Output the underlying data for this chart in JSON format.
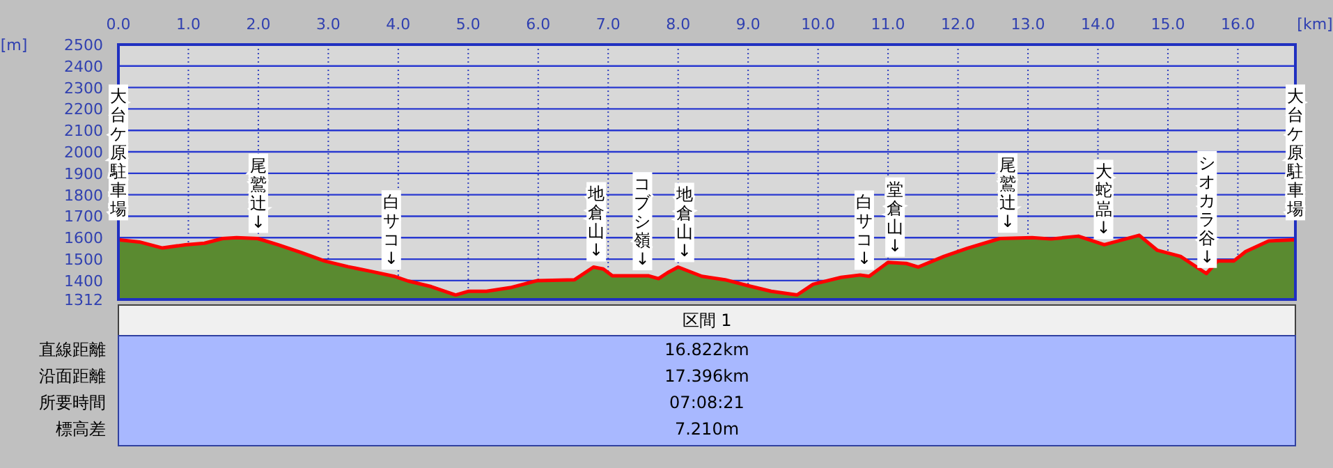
{
  "chart_data": {
    "type": "area",
    "xlabel": "[km]",
    "ylabel": "[m]",
    "x": [
      0,
      0.3,
      0.63,
      0.96,
      1.23,
      1.49,
      1.69,
      1.99,
      2.28,
      2.62,
      2.95,
      3.28,
      3.61,
      3.94,
      4.14,
      4.47,
      4.82,
      5.0,
      5.26,
      5.6,
      5.99,
      6.52,
      6.79,
      6.93,
      7.06,
      7.32,
      7.58,
      7.72,
      7.85,
      8.0,
      8.34,
      8.67,
      9.0,
      9.33,
      9.7,
      9.93,
      10.33,
      10.6,
      10.73,
      11.0,
      11.26,
      11.43,
      11.8,
      12.13,
      12.6,
      13.06,
      13.33,
      13.72,
      14.09,
      14.59,
      14.85,
      15.18,
      15.55,
      15.71,
      15.94,
      16.11,
      16.44,
      16.822
    ],
    "series": [
      {
        "color": "#5a8a30",
        "values": [
          1590,
          1580,
          1552,
          1567,
          1574,
          1596,
          1600,
          1596,
          1567,
          1530,
          1491,
          1465,
          1443,
          1420,
          1398,
          1372,
          1333,
          1350,
          1350,
          1367,
          1400,
          1404,
          1463,
          1454,
          1422,
          1422,
          1422,
          1409,
          1437,
          1463,
          1420,
          1404,
          1376,
          1350,
          1333,
          1383,
          1415,
          1426,
          1420,
          1485,
          1480,
          1463,
          1513,
          1550,
          1596,
          1600,
          1594,
          1607,
          1567,
          1611,
          1541,
          1513,
          1433,
          1491,
          1491,
          1535,
          1585,
          1590
        ]
      },
      {
        "type": "line",
        "color": "#ff0000",
        "values": [
          1590,
          1580,
          1552,
          1567,
          1574,
          1596,
          1600,
          1596,
          1567,
          1530,
          1491,
          1465,
          1443,
          1420,
          1398,
          1372,
          1333,
          1350,
          1350,
          1367,
          1400,
          1404,
          1463,
          1454,
          1422,
          1422,
          1422,
          1409,
          1437,
          1463,
          1420,
          1404,
          1376,
          1350,
          1333,
          1383,
          1415,
          1426,
          1420,
          1485,
          1480,
          1463,
          1513,
          1550,
          1596,
          1600,
          1594,
          1607,
          1567,
          1611,
          1541,
          1513,
          1433,
          1491,
          1491,
          1535,
          1585,
          1590
        ]
      }
    ],
    "xlim": [
      0,
      16.822
    ],
    "ylim": [
      1312,
      2500
    ],
    "xticks": [
      {
        "value": 0,
        "label": "0.0"
      },
      {
        "value": 1,
        "label": "1.0"
      },
      {
        "value": 2,
        "label": "2.0"
      },
      {
        "value": 3,
        "label": "3.0"
      },
      {
        "value": 4,
        "label": "4.0"
      },
      {
        "value": 5,
        "label": "5.0"
      },
      {
        "value": 6,
        "label": "6.0"
      },
      {
        "value": 7,
        "label": "7.0"
      },
      {
        "value": 8,
        "label": "8.0"
      },
      {
        "value": 9,
        "label": "9.0"
      },
      {
        "value": 10,
        "label": "10.0"
      },
      {
        "value": 11,
        "label": "11.0"
      },
      {
        "value": 12,
        "label": "12.0"
      },
      {
        "value": 13,
        "label": "13.0"
      },
      {
        "value": 14,
        "label": "14.0"
      },
      {
        "value": 15,
        "label": "15.0"
      },
      {
        "value": 16,
        "label": "16.0"
      }
    ],
    "yticks": [
      1312,
      1400,
      1500,
      1600,
      1700,
      1800,
      1900,
      2000,
      2100,
      2200,
      2300,
      2400,
      2500
    ],
    "grid": true,
    "annotations": [
      {
        "text": "大台ケ原駐車場",
        "x": 0,
        "y": 1590
      },
      {
        "text": "尾鷲辻↓",
        "x": 2.0,
        "y": 1596
      },
      {
        "text": "白サコ↓",
        "x": 3.9,
        "y": 1425
      },
      {
        "text": "地倉山↓",
        "x": 6.83,
        "y": 1463
      },
      {
        "text": "コブシ嶺↓",
        "x": 7.49,
        "y": 1422
      },
      {
        "text": "地倉山↓",
        "x": 8.09,
        "y": 1460
      },
      {
        "text": "白サコ↓",
        "x": 10.66,
        "y": 1424
      },
      {
        "text": "堂倉山↓",
        "x": 11.1,
        "y": 1485
      },
      {
        "text": "尾鷲辻↓",
        "x": 12.71,
        "y": 1597
      },
      {
        "text": "大蛇嵓↓",
        "x": 14.08,
        "y": 1567
      },
      {
        "text": "シオカラ谷↓",
        "x": 15.56,
        "y": 1433
      },
      {
        "text": "大台ケ原駐車場",
        "x": 16.822,
        "y": 1590
      },
      "区間 1",
      "直線距離",
      "16.822km",
      "沿面距離",
      "17.396km",
      "所要時間",
      "07:08:21",
      "標高差",
      "7.210m"
    ]
  }
}
